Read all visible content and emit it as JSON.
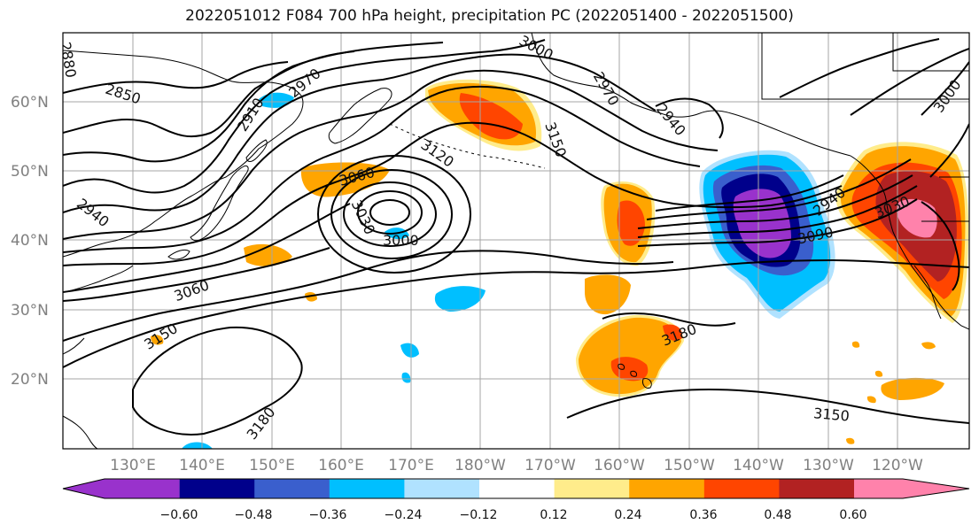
{
  "title": "2022051012 F084 700 hPa height, precipitation PC (2022051400 - 2022051500)",
  "latitude_labels": [
    "60°N",
    "50°N",
    "40°N",
    "30°N",
    "20°N"
  ],
  "longitude_labels": [
    "130°E",
    "140°E",
    "150°E",
    "160°E",
    "170°E",
    "180°W",
    "170°W",
    "160°W",
    "150°W",
    "140°W",
    "130°W",
    "120°W"
  ],
  "contour_labels": [
    "2850",
    "2910",
    "2970",
    "2880",
    "3000",
    "2970",
    "2940",
    "3150",
    "3120",
    "3060",
    "3030",
    "3000",
    "2940",
    "2940",
    "3030",
    "3090",
    "3060",
    "3150",
    "3180",
    "3150",
    "3180",
    "3000"
  ],
  "colorbar": {
    "colors": [
      "#9932CC",
      "#00008B",
      "#3A5FCD",
      "#00BFFF",
      "#B0E2FF",
      "#FFFFFF",
      "#FFEC8B",
      "#FFA500",
      "#FF4500",
      "#B22222",
      "#FF82AB"
    ],
    "tick_labels": [
      "−0.60",
      "−0.48",
      "−0.36",
      "−0.24",
      "−0.12",
      "0.12",
      "0.24",
      "0.36",
      "0.48",
      "0.60"
    ]
  }
}
